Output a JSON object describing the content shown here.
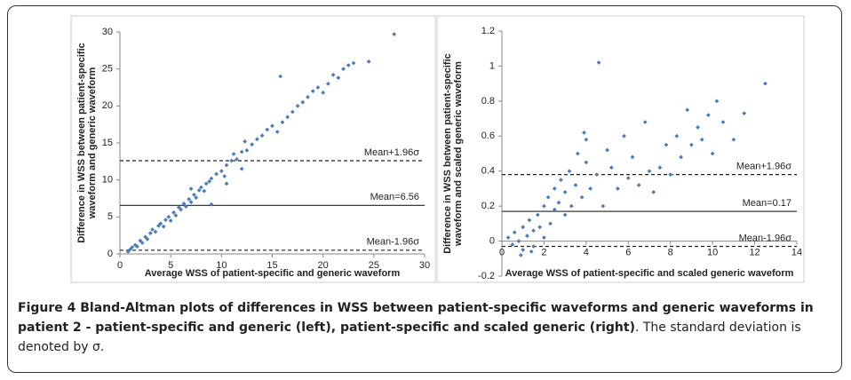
{
  "chart_data": [
    {
      "type": "scatter",
      "color": "#4a7ebb",
      "xlabel": "Average WSS of patient-specific and generic waveform",
      "ylabel": [
        "Difference in WSS between patient-specific",
        "waveform and generic  waveform"
      ],
      "xlim": [
        0,
        30
      ],
      "ylim": [
        0,
        30
      ],
      "xticks": [
        0,
        5,
        10,
        15,
        20,
        25,
        30
      ],
      "yticks": [
        0,
        5,
        10,
        15,
        20,
        25,
        30
      ],
      "lines": [
        {
          "label": "Mean+1.96σ",
          "value": 12.6,
          "style": "dashed"
        },
        {
          "label": "Mean=6.56",
          "value": 6.56,
          "style": "solid"
        },
        {
          "label": "Mean-1.96σ",
          "value": 0.5,
          "style": "dashed"
        }
      ],
      "x": [
        0.8,
        1,
        1.2,
        1.5,
        1.7,
        2,
        2.2,
        2.5,
        2.7,
        3,
        3.2,
        3.5,
        3.8,
        4,
        4.3,
        4.5,
        4.8,
        5,
        5.3,
        5.5,
        5.8,
        6,
        6.3,
        6.5,
        6.8,
        7,
        7.3,
        7.5,
        7.8,
        8,
        8.3,
        8.5,
        8.8,
        9,
        9.5,
        10,
        10.3,
        10.5,
        11,
        11.2,
        11.5,
        12,
        12.3,
        12.5,
        13,
        13.5,
        14,
        14.5,
        15,
        15.5,
        16,
        15.8,
        16.5,
        17,
        17.5,
        18,
        18.5,
        19,
        19.5,
        20,
        20.5,
        21,
        21.5,
        22,
        22.5,
        23,
        24.5,
        27,
        9,
        7,
        10.5,
        12
      ],
      "values": [
        0.3,
        0.6,
        0.9,
        1.2,
        1.0,
        1.8,
        1.5,
        2.3,
        2.0,
        2.8,
        3.3,
        3.0,
        3.8,
        4.1,
        3.7,
        4.6,
        5.0,
        4.5,
        5.6,
        5.2,
        6.3,
        6.0,
        6.8,
        6.4,
        7.4,
        7.0,
        8.0,
        7.6,
        8.6,
        9.0,
        8.5,
        9.5,
        9.8,
        10.2,
        10.8,
        11.2,
        10.5,
        12.0,
        12.6,
        13.5,
        12.8,
        13.8,
        15.2,
        14.0,
        14.8,
        15.5,
        16.0,
        16.8,
        17.3,
        16.5,
        17.8,
        24,
        18.5,
        19.2,
        20.0,
        20.5,
        21.2,
        22.0,
        22.5,
        21.8,
        23.0,
        24.2,
        23.8,
        25.0,
        25.5,
        25.8,
        26,
        29.7,
        6.7,
        8.8,
        9.5,
        11.5
      ]
    },
    {
      "type": "scatter",
      "color": "#4a7ebb",
      "xlabel": "Average WSS of patient-specific and scaled generic  waveform",
      "ylabel": [
        "Difference in WSS between patient-specific",
        "waveform and scaled generic  waveform"
      ],
      "xlim": [
        0,
        14
      ],
      "ylim": [
        -0.2,
        1.2
      ],
      "xticks": [
        0,
        2,
        4,
        6,
        8,
        10,
        12,
        14
      ],
      "yticks": [
        -0.2,
        0,
        0.2,
        0.4,
        0.6,
        0.8,
        1,
        1.2
      ],
      "lines": [
        {
          "label": "Mean+1.96σ",
          "value": 0.38,
          "style": "dashed"
        },
        {
          "label": "Mean=0.17",
          "value": 0.17,
          "style": "solid"
        },
        {
          "label": "Mean-1.96σ",
          "value": -0.03,
          "style": "dashed"
        }
      ],
      "x": [
        0.3,
        0.5,
        0.6,
        0.8,
        1,
        1,
        1.2,
        1.3,
        1.5,
        1.5,
        1.7,
        1.8,
        2,
        2,
        2.2,
        2.3,
        2.5,
        2.5,
        2.7,
        2.8,
        3,
        3,
        3.2,
        3.3,
        3.5,
        3.6,
        3.8,
        4,
        4,
        4.2,
        4.5,
        4.6,
        4.8,
        5,
        5.2,
        5.5,
        5.8,
        6,
        6.2,
        6.5,
        6.8,
        7,
        7.2,
        7.5,
        7.8,
        8,
        8.3,
        8.5,
        8.8,
        9,
        9.3,
        9.5,
        9.8,
        10,
        10.2,
        10.5,
        11,
        11.5,
        12.5,
        0.9,
        1.4,
        3.9
      ],
      "values": [
        0.02,
        -0.02,
        0.05,
        0.0,
        -0.05,
        0.08,
        0.03,
        0.12,
        0.06,
        -0.03,
        0.15,
        0.08,
        0.2,
        0.02,
        0.25,
        0.1,
        0.18,
        0.3,
        0.22,
        0.35,
        0.15,
        0.28,
        0.4,
        0.2,
        0.32,
        0.5,
        0.25,
        0.45,
        0.58,
        0.3,
        0.38,
        1.02,
        0.2,
        0.52,
        0.42,
        0.3,
        0.6,
        0.36,
        0.48,
        0.32,
        0.68,
        0.4,
        0.28,
        0.42,
        0.55,
        0.38,
        0.6,
        0.48,
        0.75,
        0.55,
        0.65,
        0.58,
        0.72,
        0.5,
        0.8,
        0.68,
        0.58,
        0.73,
        0.9,
        -0.08,
        -0.06,
        0.62
      ]
    }
  ],
  "caption": {
    "bold": "Figure 4 Bland-Altman plots of differences in WSS between patient-specific waveforms and generic waveforms in patient 2 - patient-specific and generic (left), patient-specific and scaled generic (right)",
    "text": ". The standard deviation is denoted by σ."
  }
}
